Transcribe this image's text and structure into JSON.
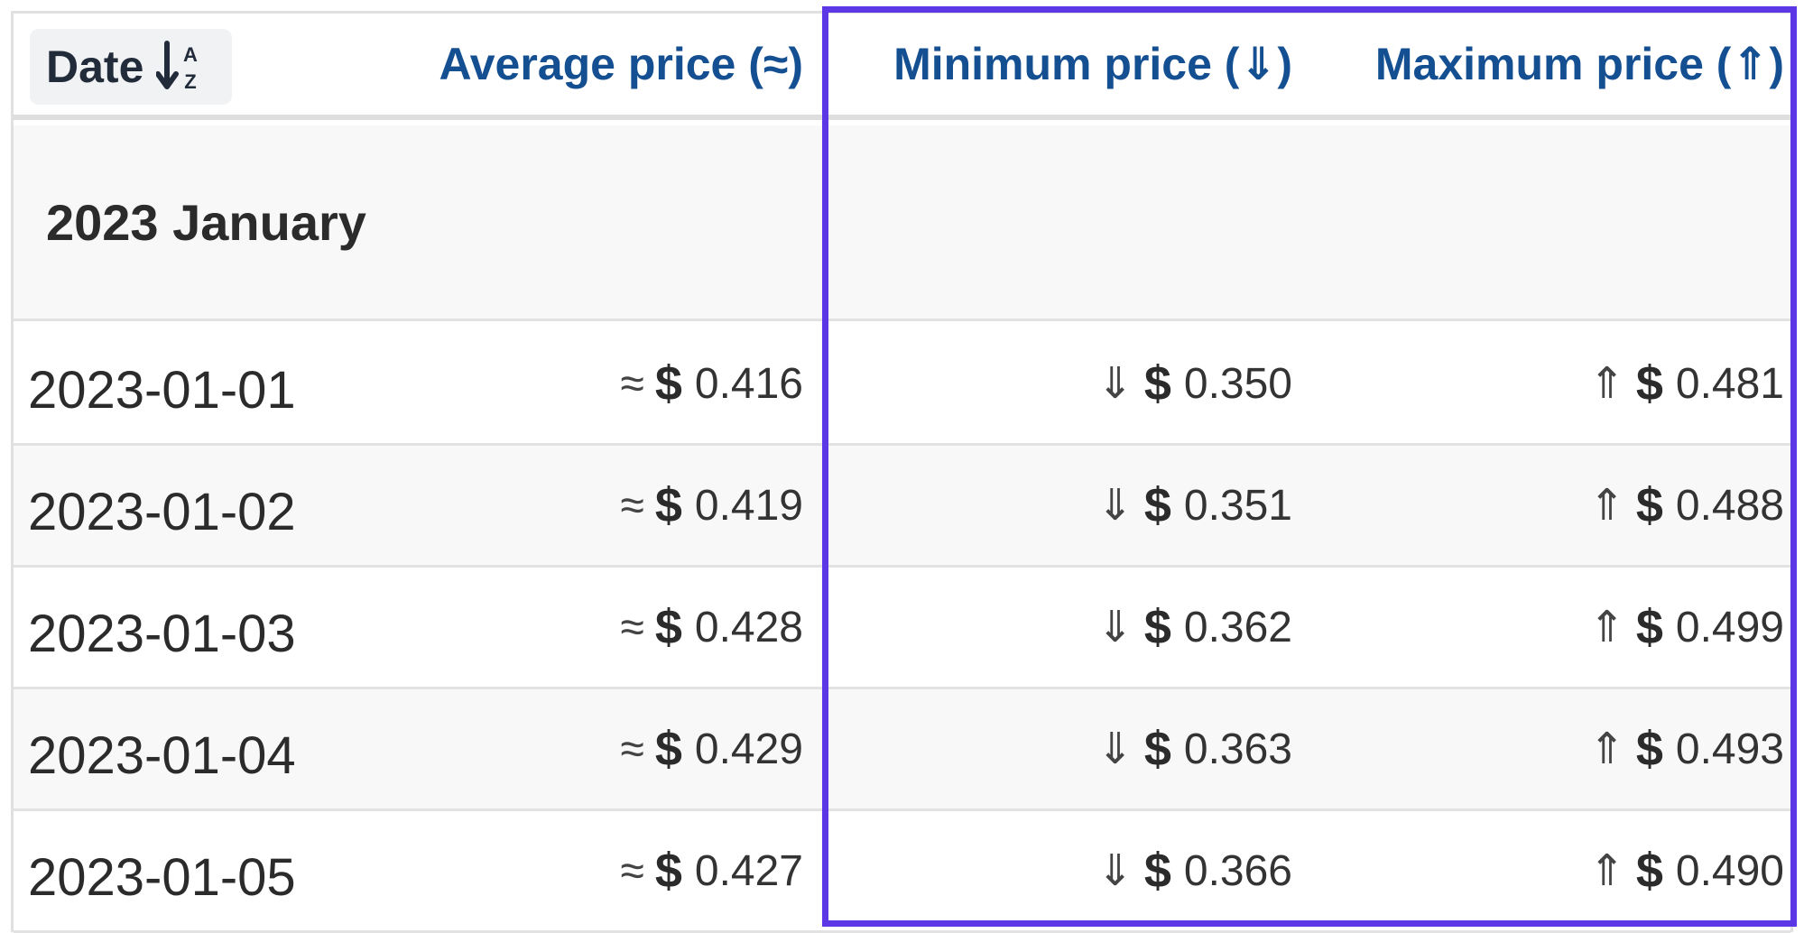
{
  "table": {
    "columns": {
      "date": "Date",
      "average": "Average price (≈)",
      "minimum": "Minimum price (⇓)",
      "maximum": "Maximum price (⇑)"
    },
    "sort_icon": "sort-alpha-down-icon",
    "group_label": "2023 January",
    "symbols": {
      "approx": "≈",
      "down": "⇓",
      "up": "⇑",
      "currency": "$"
    },
    "rows": [
      {
        "date": "2023-01-01",
        "avg": "0.416",
        "min": "0.350",
        "max": "0.481"
      },
      {
        "date": "2023-01-02",
        "avg": "0.419",
        "min": "0.351",
        "max": "0.488"
      },
      {
        "date": "2023-01-03",
        "avg": "0.428",
        "min": "0.362",
        "max": "0.499"
      },
      {
        "date": "2023-01-04",
        "avg": "0.429",
        "min": "0.363",
        "max": "0.493"
      },
      {
        "date": "2023-01-05",
        "avg": "0.427",
        "min": "0.366",
        "max": "0.490"
      }
    ]
  },
  "colors": {
    "header_text": "#144f92",
    "highlight_border": "#5b37e6",
    "alt_row": "#f8f8f8"
  }
}
